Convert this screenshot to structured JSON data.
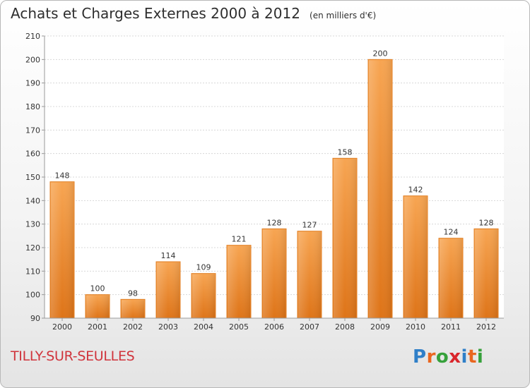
{
  "title": "Achats et Charges Externes 2000 à 2012",
  "unit": "(en milliers d'€)",
  "place": "TILLY-SUR-SEULLES",
  "logo": {
    "text": "Proxiti",
    "letters": [
      "P",
      "r",
      "o",
      "x",
      "i",
      "t",
      "i"
    ],
    "colors": [
      "#2f7fc8",
      "#e9661f",
      "#36a13b",
      "#d9262c",
      "#2f7fc8",
      "#e9661f",
      "#36a13b"
    ]
  },
  "chart_data": {
    "type": "bar",
    "title": "Achats et Charges Externes 2000 à 2012",
    "unit": "(en milliers d'€)",
    "categories": [
      "2000",
      "2001",
      "2002",
      "2003",
      "2004",
      "2005",
      "2006",
      "2007",
      "2008",
      "2009",
      "2010",
      "2011",
      "2012"
    ],
    "values": [
      148,
      100,
      98,
      114,
      109,
      121,
      128,
      127,
      158,
      200,
      142,
      124,
      128
    ],
    "ylim": [
      90,
      210
    ],
    "yticks": [
      90,
      100,
      110,
      120,
      130,
      140,
      150,
      160,
      170,
      180,
      190,
      200,
      210
    ],
    "grid": true,
    "legend": "none",
    "bar_color": "#f08c2e"
  }
}
